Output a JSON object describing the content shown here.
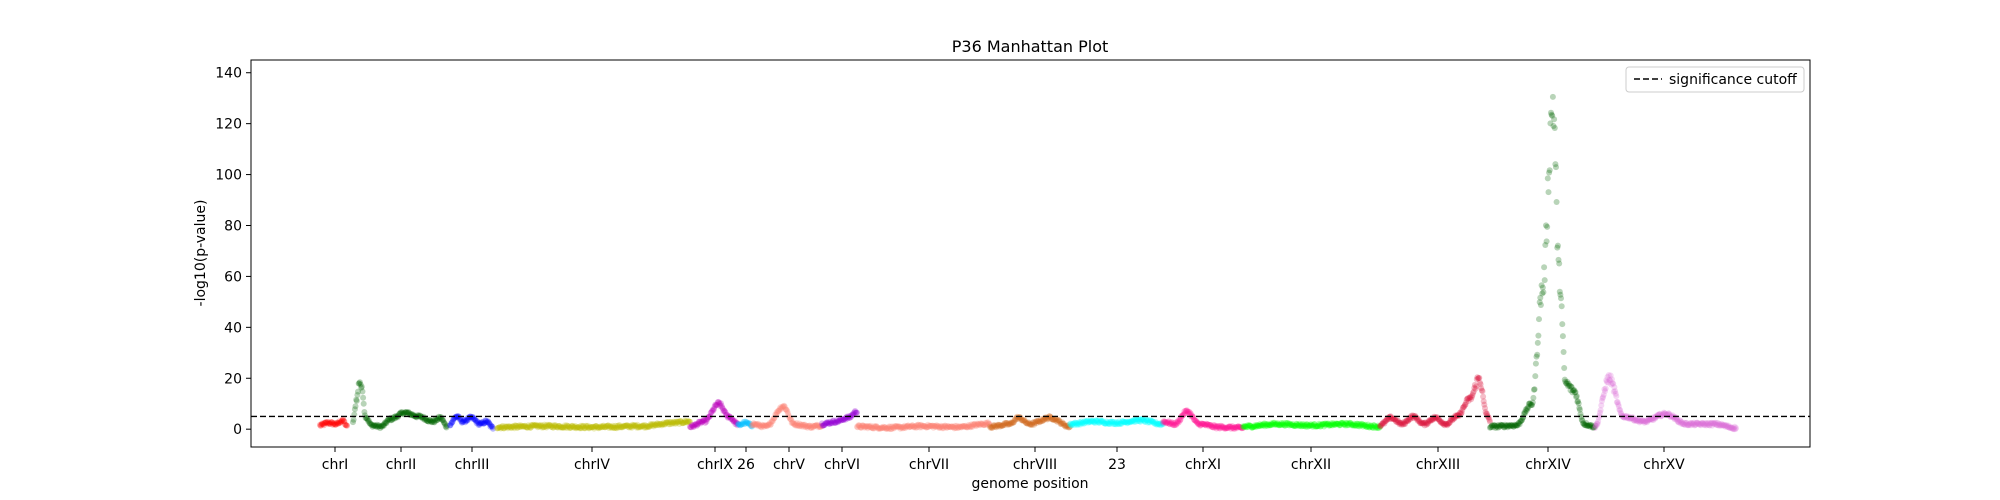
{
  "chart_data": {
    "type": "scatter",
    "title": "P36 Manhattan Plot",
    "xlabel": "genome position",
    "ylabel": "-log10(p-value)",
    "ylim": [
      -7,
      145
    ],
    "yticks": [
      0,
      20,
      40,
      60,
      80,
      100,
      120,
      140
    ],
    "grid": false,
    "legend_position": "top-right",
    "threshold": {
      "value": 5,
      "label": "significance cutoff",
      "style": "dashed",
      "color": "#000000"
    },
    "chromosomes": [
      {
        "label": "chrI",
        "color": "#ff0000",
        "profile": [
          [
            0,
            1.5
          ],
          [
            0.3,
            2.5
          ],
          [
            0.6,
            2
          ],
          [
            0.85,
            3.5
          ],
          [
            1,
            1
          ]
        ]
      },
      {
        "label": "chrII",
        "color": "#006400",
        "profile": [
          [
            0,
            3
          ],
          [
            0.04,
            12
          ],
          [
            0.07,
            19
          ],
          [
            0.1,
            15
          ],
          [
            0.13,
            5
          ],
          [
            0.2,
            1.5
          ],
          [
            0.3,
            1
          ],
          [
            0.4,
            4
          ],
          [
            0.55,
            6.5
          ],
          [
            0.7,
            5
          ],
          [
            0.85,
            3
          ],
          [
            0.93,
            4.5
          ],
          [
            1,
            1
          ]
        ]
      },
      {
        "label": "chrIII",
        "color": "#0000ff",
        "profile": [
          [
            0,
            2
          ],
          [
            0.15,
            5
          ],
          [
            0.3,
            3
          ],
          [
            0.5,
            4.5
          ],
          [
            0.7,
            2
          ],
          [
            0.85,
            3
          ],
          [
            1,
            0.5
          ]
        ]
      },
      {
        "label": "chrIV",
        "color": "#bbbb00",
        "profile": [
          [
            0,
            0.8
          ],
          [
            0.25,
            1.2
          ],
          [
            0.5,
            0.8
          ],
          [
            0.75,
            1.2
          ],
          [
            0.92,
            2.5
          ],
          [
            1,
            3
          ]
        ]
      },
      {
        "label": "chrIX",
        "color": "#bb00bb",
        "profile": [
          [
            0,
            1
          ],
          [
            0.3,
            3
          ],
          [
            0.6,
            10
          ],
          [
            0.8,
            5
          ],
          [
            1,
            2
          ]
        ]
      },
      {
        "label": "26",
        "color": "#00bfff",
        "profile": [
          [
            0,
            1.5
          ],
          [
            0.5,
            2.5
          ],
          [
            1,
            1.5
          ]
        ]
      },
      {
        "label": "chrV",
        "color": "#fa8072",
        "profile": [
          [
            0,
            2
          ],
          [
            0.2,
            1
          ],
          [
            0.45,
            9
          ],
          [
            0.6,
            2
          ],
          [
            0.85,
            1
          ],
          [
            1,
            1.5
          ]
        ]
      },
      {
        "label": "chrVI",
        "color": "#9400d3",
        "profile": [
          [
            0,
            2
          ],
          [
            0.4,
            3
          ],
          [
            0.75,
            4.5
          ],
          [
            1,
            7
          ]
        ]
      },
      {
        "label": "chrVII",
        "color": "#fa8072",
        "profile": [
          [
            0,
            1
          ],
          [
            0.25,
            0.6
          ],
          [
            0.5,
            1.2
          ],
          [
            0.75,
            0.8
          ],
          [
            1,
            2.2
          ]
        ]
      },
      {
        "label": "chrVIII",
        "color": "#d2691e",
        "profile": [
          [
            0,
            1
          ],
          [
            0.25,
            2
          ],
          [
            0.35,
            4.5
          ],
          [
            0.5,
            2
          ],
          [
            0.75,
            4.5
          ],
          [
            1,
            1
          ]
        ]
      },
      {
        "label": "23",
        "color": "#00ffff",
        "profile": [
          [
            0,
            2
          ],
          [
            0.25,
            3
          ],
          [
            0.5,
            2.5
          ],
          [
            0.75,
            3.5
          ],
          [
            1,
            2
          ]
        ]
      },
      {
        "label": "chrXI",
        "color": "#ff1493",
        "profile": [
          [
            0,
            3
          ],
          [
            0.15,
            2
          ],
          [
            0.3,
            7
          ],
          [
            0.45,
            2
          ],
          [
            0.7,
            0.8
          ],
          [
            1,
            0.5
          ]
        ]
      },
      {
        "label": "chrXII",
        "color": "#00ff00",
        "profile": [
          [
            0,
            1
          ],
          [
            0.25,
            2
          ],
          [
            0.5,
            1.5
          ],
          [
            0.75,
            2
          ],
          [
            1,
            1
          ]
        ]
      },
      {
        "label": "chrXIII",
        "color": "#dc143c",
        "profile": [
          [
            0,
            1.5
          ],
          [
            0.1,
            4.5
          ],
          [
            0.2,
            2
          ],
          [
            0.3,
            5
          ],
          [
            0.4,
            2
          ],
          [
            0.5,
            4.5
          ],
          [
            0.6,
            2
          ],
          [
            0.7,
            5
          ],
          [
            0.82,
            12
          ],
          [
            0.9,
            20
          ],
          [
            0.97,
            6
          ],
          [
            1,
            3
          ]
        ]
      },
      {
        "label": "chrXIV",
        "color": "#006400",
        "profile": [
          [
            0,
            1
          ],
          [
            0.25,
            1.5
          ],
          [
            0.4,
            10
          ],
          [
            0.5,
            55
          ],
          [
            0.6,
            128
          ],
          [
            0.66,
            60
          ],
          [
            0.72,
            18
          ],
          [
            0.8,
            15
          ],
          [
            0.9,
            2
          ],
          [
            1,
            1
          ]
        ]
      },
      {
        "label": "chrXV",
        "color": "#da70d6",
        "profile": [
          [
            0,
            1
          ],
          [
            0.1,
            20
          ],
          [
            0.2,
            5
          ],
          [
            0.35,
            3
          ],
          [
            0.5,
            6
          ],
          [
            0.65,
            2
          ],
          [
            0.85,
            2
          ],
          [
            1,
            0.5
          ]
        ]
      }
    ]
  }
}
